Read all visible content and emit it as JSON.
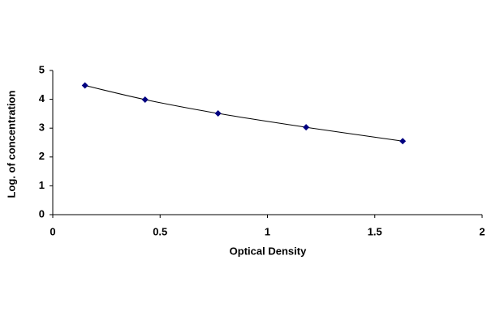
{
  "chart_data": {
    "type": "scatter",
    "x": [
      0.15,
      0.43,
      0.77,
      1.18,
      1.63
    ],
    "values": [
      4.48,
      3.99,
      3.51,
      3.03,
      2.55
    ],
    "color": "#000080",
    "line_color": "#000000",
    "xlabel": "Optical Density",
    "ylabel": "Log. of concentration",
    "xlim": [
      0,
      2
    ],
    "xticks": [
      0,
      0.5,
      1,
      1.5,
      2
    ],
    "ylim": [
      0,
      5
    ],
    "yticks": [
      0,
      1,
      2,
      3,
      4,
      5
    ],
    "grid": false
  }
}
